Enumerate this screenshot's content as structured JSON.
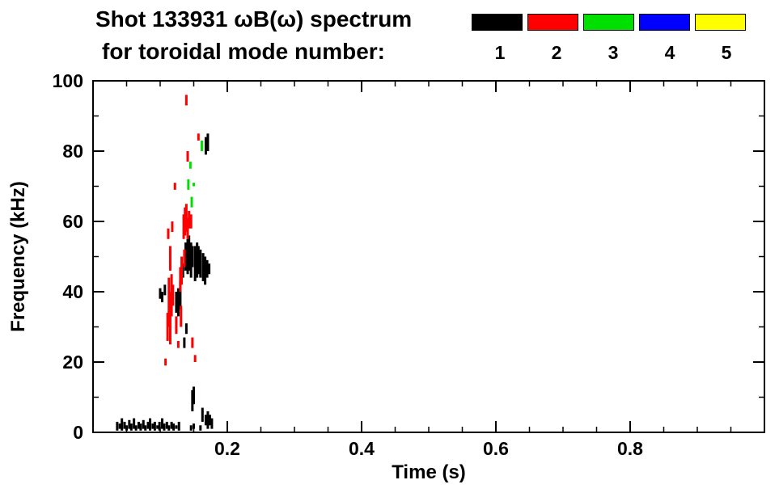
{
  "title": {
    "line1": "Shot 133931 ωB(ω) spectrum",
    "line2": "for toroidal mode number:"
  },
  "legend": {
    "entries": [
      {
        "label": "1",
        "color": "#000000"
      },
      {
        "label": "2",
        "color": "#ff0000"
      },
      {
        "label": "3",
        "color": "#00e000"
      },
      {
        "label": "4",
        "color": "#0000ff"
      },
      {
        "label": "5",
        "color": "#ffff00"
      }
    ]
  },
  "chart_data": {
    "type": "scatter",
    "title": "Shot 133931 ωB(ω) spectrum for toroidal mode number",
    "xlabel": "Time (s)",
    "ylabel": "Frequency (kHz)",
    "xlim": [
      0,
      1.0
    ],
    "ylim": [
      0,
      100
    ],
    "x_major_ticks": [
      0.2,
      0.4,
      0.6,
      0.8
    ],
    "x_major_tick_labels": [
      "0.2",
      "0.4",
      "0.6",
      "0.8"
    ],
    "x_minor_step": 0.05,
    "y_major_ticks": [
      0,
      20,
      40,
      60,
      80,
      100
    ],
    "y_major_tick_labels": [
      "0",
      "20",
      "40",
      "60",
      "80",
      "100"
    ],
    "y_minor_step": 10,
    "grid": false,
    "legend_position": "top-right",
    "segment_format": "[time_s, freq_lo_kHz, freq_hi_kHz] short vertical streaks",
    "series": [
      {
        "name": "1",
        "color": "#000000",
        "segments": [
          [
            0.036,
            0.5,
            3
          ],
          [
            0.04,
            1,
            2.5
          ],
          [
            0.043,
            0.5,
            4
          ],
          [
            0.047,
            1,
            3
          ],
          [
            0.05,
            0.5,
            2
          ],
          [
            0.054,
            1,
            3.5
          ],
          [
            0.057,
            0.5,
            2.5
          ],
          [
            0.061,
            1,
            4
          ],
          [
            0.064,
            0.5,
            2
          ],
          [
            0.068,
            1,
            3
          ],
          [
            0.071,
            0.5,
            2.5
          ],
          [
            0.075,
            1,
            3.5
          ],
          [
            0.078,
            0.5,
            2
          ],
          [
            0.082,
            1,
            3
          ],
          [
            0.085,
            0.5,
            4
          ],
          [
            0.089,
            1,
            2.5
          ],
          [
            0.092,
            0.5,
            3
          ],
          [
            0.096,
            1,
            2
          ],
          [
            0.099,
            0.5,
            3
          ],
          [
            0.103,
            1,
            4
          ],
          [
            0.106,
            0.5,
            2.5
          ],
          [
            0.11,
            1,
            3
          ],
          [
            0.113,
            0.5,
            2
          ],
          [
            0.117,
            1,
            3
          ],
          [
            0.12,
            0.5,
            2.5
          ],
          [
            0.124,
            1,
            2
          ],
          [
            0.128,
            0.5,
            3
          ],
          [
            0.146,
            0.5,
            2
          ],
          [
            0.15,
            1,
            2.5
          ],
          [
            0.16,
            0.5,
            2
          ],
          [
            0.168,
            2,
            5
          ],
          [
            0.171,
            1,
            6
          ],
          [
            0.174,
            2,
            5
          ],
          [
            0.177,
            1,
            4
          ],
          [
            0.148,
            6,
            12
          ],
          [
            0.15,
            8,
            13
          ],
          [
            0.163,
            3,
            7
          ],
          [
            0.1,
            38,
            41
          ],
          [
            0.103,
            37,
            40
          ],
          [
            0.107,
            39,
            42
          ],
          [
            0.124,
            34,
            40
          ],
          [
            0.127,
            33,
            41
          ],
          [
            0.13,
            35,
            43
          ],
          [
            0.134,
            44,
            48
          ],
          [
            0.136,
            24,
            27
          ],
          [
            0.139,
            28,
            31
          ],
          [
            0.138,
            46,
            54
          ],
          [
            0.141,
            45,
            55
          ],
          [
            0.143,
            46,
            56
          ],
          [
            0.146,
            44,
            54
          ],
          [
            0.148,
            47,
            53
          ],
          [
            0.152,
            43,
            53
          ],
          [
            0.155,
            44,
            54
          ],
          [
            0.157,
            45,
            53
          ],
          [
            0.16,
            44,
            52
          ],
          [
            0.164,
            43,
            51
          ],
          [
            0.167,
            42,
            50
          ],
          [
            0.17,
            44,
            49
          ],
          [
            0.173,
            45,
            48
          ],
          [
            0.168,
            79,
            84
          ],
          [
            0.171,
            80,
            85
          ]
        ]
      },
      {
        "name": "2",
        "color": "#ff0000",
        "segments": [
          [
            0.108,
            19,
            21
          ],
          [
            0.111,
            26,
            34
          ],
          [
            0.113,
            30,
            44
          ],
          [
            0.115,
            25,
            40
          ],
          [
            0.117,
            33,
            45
          ],
          [
            0.115,
            46,
            53
          ],
          [
            0.112,
            55,
            58
          ],
          [
            0.118,
            57,
            60
          ],
          [
            0.119,
            36,
            42
          ],
          [
            0.122,
            69,
            71
          ],
          [
            0.124,
            28,
            33
          ],
          [
            0.127,
            24,
            26
          ],
          [
            0.13,
            40,
            47
          ],
          [
            0.132,
            42,
            50
          ],
          [
            0.131,
            30,
            36
          ],
          [
            0.135,
            55,
            62
          ],
          [
            0.137,
            56,
            64
          ],
          [
            0.139,
            57,
            65
          ],
          [
            0.141,
            55,
            61
          ],
          [
            0.143,
            58,
            63
          ],
          [
            0.136,
            47,
            52
          ],
          [
            0.139,
            93,
            96
          ],
          [
            0.141,
            77,
            80
          ],
          [
            0.146,
            58,
            62
          ],
          [
            0.148,
            24,
            27
          ],
          [
            0.152,
            20,
            22
          ],
          [
            0.157,
            83,
            85
          ]
        ]
      },
      {
        "name": "3",
        "color": "#00e000",
        "segments": [
          [
            0.142,
            69,
            72
          ],
          [
            0.145,
            75,
            77
          ],
          [
            0.147,
            64,
            67
          ],
          [
            0.15,
            70,
            71
          ],
          [
            0.162,
            80,
            83
          ]
        ]
      },
      {
        "name": "4",
        "color": "#0000ff",
        "segments": []
      },
      {
        "name": "5",
        "color": "#ffff00",
        "segments": []
      }
    ]
  }
}
